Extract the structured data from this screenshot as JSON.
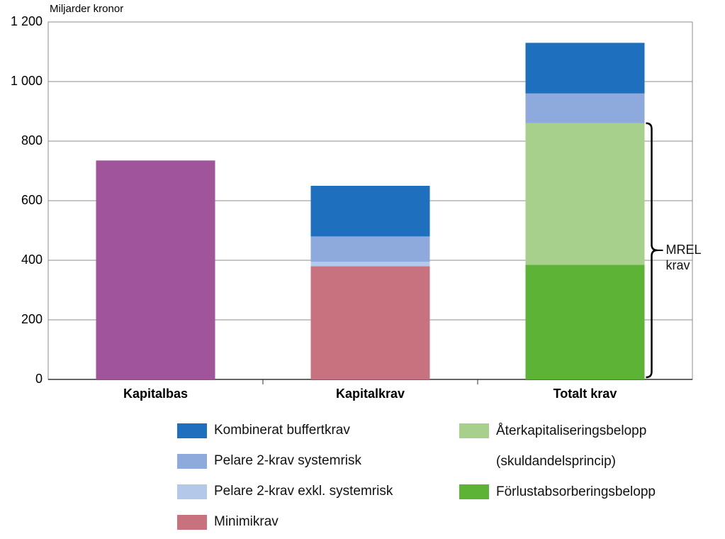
{
  "chart_data": {
    "type": "stacked_bar",
    "y_label": "Miljarder kronor",
    "categories": [
      "Kapitalbas",
      "Kapitalkrav",
      "Totalt krav"
    ],
    "series": [
      {
        "name": "Kombinerat buffertkrav",
        "color": "#1f6fbf",
        "values": [
          null,
          170,
          170
        ]
      },
      {
        "name": "Pelare 2-krav systemrisk",
        "color": "#8ea9db",
        "values": [
          null,
          85,
          100
        ]
      },
      {
        "name": "Pelare 2-krav exkl. systemrisk",
        "color": "#b4c8ea",
        "values": [
          null,
          15,
          null
        ]
      },
      {
        "name": "Minimikrav",
        "color": "#c87280",
        "values": [
          null,
          380,
          null
        ]
      },
      {
        "name": "Återkapitaliseringsbelopp (skuldandelsprincip)",
        "color": "#a8d08d",
        "values": [
          null,
          null,
          475
        ]
      },
      {
        "name": "Förlustabsorberingsbelopp",
        "color": "#5cb335",
        "values": [
          null,
          null,
          385
        ]
      },
      {
        "color": "#a0549a",
        "values": [
          735,
          null,
          null
        ]
      }
    ],
    "annotation": "MREL krav",
    "ylim": [
      0,
      1200
    ],
    "yticks": [
      0,
      200,
      400,
      600,
      800,
      {
        "value": 1000,
        "label": "1 000"
      },
      {
        "value": 1200,
        "label": "1 200"
      }
    ],
    "grid": true
  }
}
